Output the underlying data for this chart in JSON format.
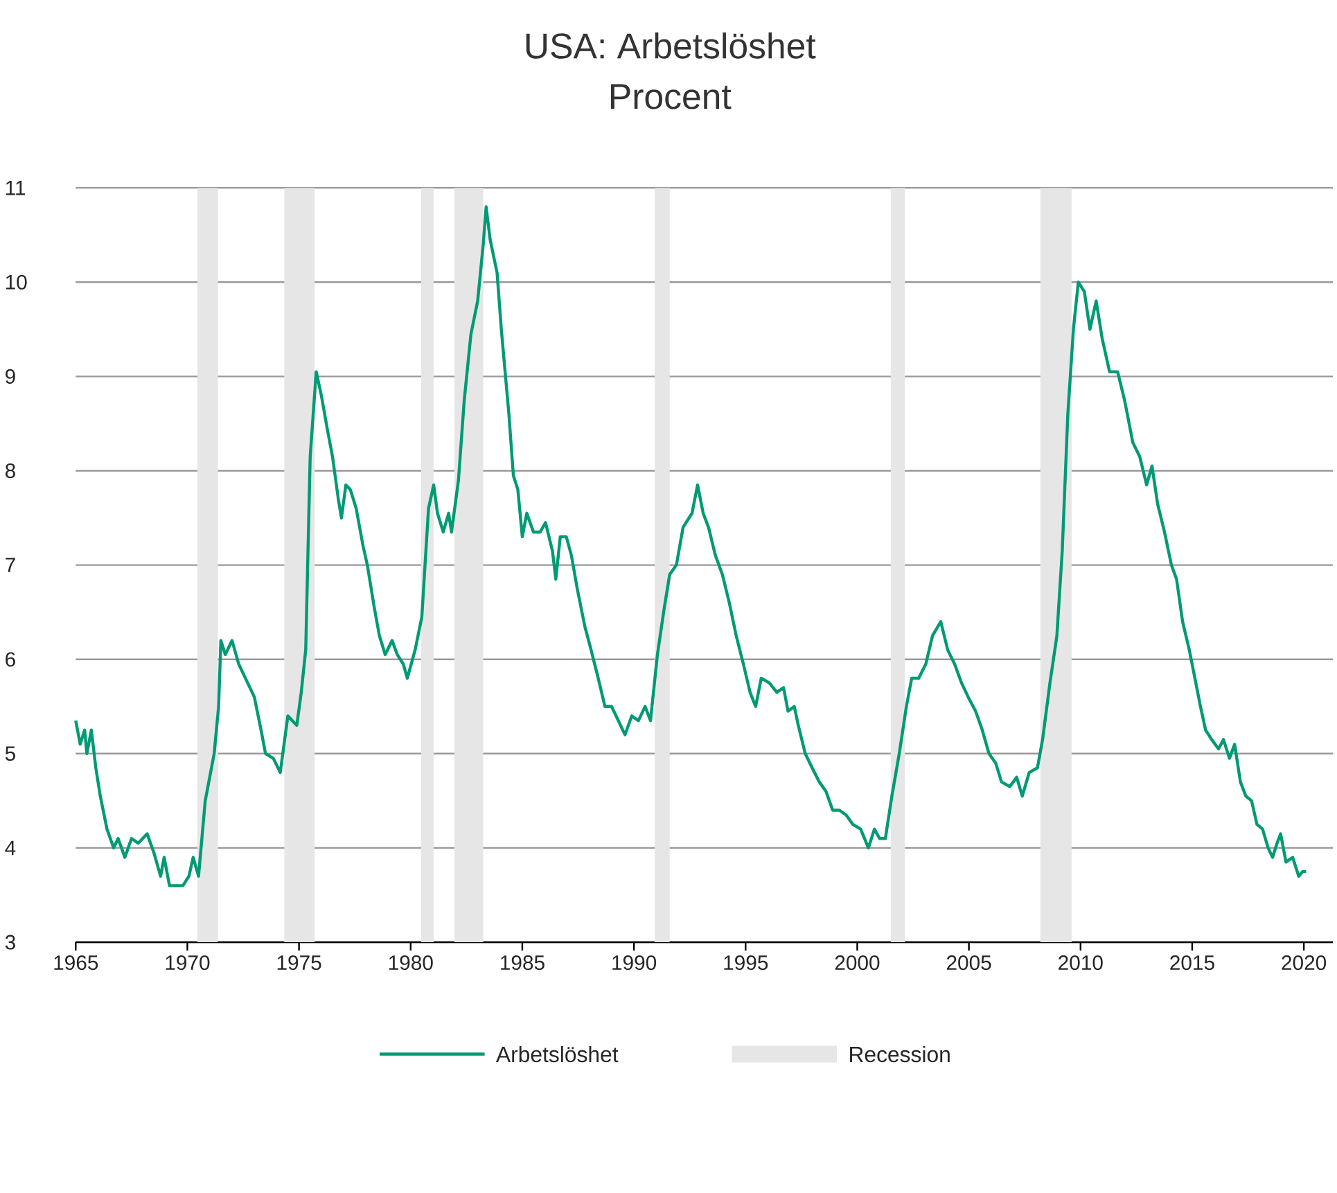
{
  "chart_data": {
    "type": "line",
    "title": "USA: Arbetslöshet",
    "subtitle": "Procent",
    "xlim": [
      1965,
      2021.3
    ],
    "ylim": [
      3,
      11
    ],
    "xticks": [
      1965,
      1970,
      1975,
      1980,
      1985,
      1990,
      1995,
      2000,
      2005,
      2010,
      2015,
      2020
    ],
    "yticks": [
      3,
      4,
      5,
      6,
      7,
      8,
      9,
      10,
      11
    ],
    "grid": "y",
    "legend": "bottom",
    "line_style": "solid",
    "bands": [
      {
        "axis": "x",
        "from": 1970.45,
        "to": 1971.37,
        "label": "Recession",
        "color": "#e6e6e6"
      },
      {
        "axis": "x",
        "from": 1974.34,
        "to": 1975.7,
        "color": "#e6e6e6"
      },
      {
        "axis": "x",
        "from": 1980.47,
        "to": 1981.03,
        "color": "#e6e6e6"
      },
      {
        "axis": "x",
        "from": 1981.96,
        "to": 1983.25,
        "color": "#e6e6e6"
      },
      {
        "axis": "x",
        "from": 1990.93,
        "to": 1991.6,
        "color": "#e6e6e6"
      },
      {
        "axis": "x",
        "from": 2001.5,
        "to": 2002.13,
        "color": "#e6e6e6"
      },
      {
        "axis": "x",
        "from": 2008.2,
        "to": 2009.6,
        "color": "#e6e6e6"
      }
    ],
    "series": [
      {
        "name": "Arbetslöshet",
        "color": "#009a74",
        "x": [
          1965.0,
          1965.2,
          1965.4,
          1965.5,
          1965.7,
          1965.9,
          1966.1,
          1966.4,
          1966.7,
          1966.9,
          1967.2,
          1967.5,
          1967.8,
          1968.2,
          1968.5,
          1968.8,
          1968.96,
          1969.2,
          1969.8,
          1970.07,
          1970.26,
          1970.5,
          1970.8,
          1971.2,
          1971.4,
          1971.5,
          1971.7,
          1972.0,
          1972.3,
          1972.6,
          1973.0,
          1973.3,
          1973.5,
          1973.85,
          1974.16,
          1974.5,
          1974.9,
          1975.1,
          1975.3,
          1975.5,
          1975.77,
          1976.0,
          1976.26,
          1976.5,
          1976.76,
          1976.9,
          1977.1,
          1977.3,
          1977.56,
          1977.87,
          1978.06,
          1978.37,
          1978.6,
          1978.86,
          1979.17,
          1979.4,
          1979.67,
          1979.85,
          1980.2,
          1980.5,
          1980.8,
          1981.03,
          1981.2,
          1981.46,
          1981.7,
          1981.83,
          1982.14,
          1982.4,
          1982.7,
          1983.0,
          1983.25,
          1983.38,
          1983.56,
          1983.87,
          1984.06,
          1984.4,
          1984.6,
          1984.8,
          1985.0,
          1985.2,
          1985.5,
          1985.8,
          1986.04,
          1986.35,
          1986.5,
          1986.7,
          1986.97,
          1987.2,
          1987.46,
          1987.8,
          1988.08,
          1988.4,
          1988.7,
          1989.0,
          1989.3,
          1989.6,
          1989.9,
          1990.2,
          1990.5,
          1990.74,
          1991.05,
          1991.36,
          1991.6,
          1991.9,
          1992.2,
          1992.6,
          1992.85,
          1993.1,
          1993.34,
          1993.65,
          1993.96,
          1994.27,
          1994.58,
          1994.9,
          1995.2,
          1995.45,
          1995.7,
          1996.06,
          1996.4,
          1996.7,
          1996.9,
          1997.18,
          1997.36,
          1997.67,
          1997.98,
          1998.3,
          1998.6,
          1998.9,
          1999.2,
          1999.5,
          1999.8,
          2000.15,
          2000.5,
          2000.77,
          2001.0,
          2001.26,
          2001.55,
          2001.88,
          2002.2,
          2002.44,
          2002.75,
          2003.07,
          2003.37,
          2003.74,
          2004.05,
          2004.36,
          2004.67,
          2004.97,
          2005.3,
          2005.6,
          2005.9,
          2006.2,
          2006.46,
          2006.83,
          2007.14,
          2007.39,
          2007.7,
          2008.07,
          2008.3,
          2008.63,
          2008.94,
          2009.18,
          2009.43,
          2009.68,
          2009.9,
          2010.17,
          2010.42,
          2010.7,
          2010.97,
          2011.3,
          2011.66,
          2011.97,
          2012.34,
          2012.65,
          2012.96,
          2013.2,
          2013.45,
          2013.76,
          2014.07,
          2014.3,
          2014.57,
          2014.87,
          2015.12,
          2015.37,
          2015.6,
          2015.87,
          2016.18,
          2016.4,
          2016.67,
          2016.9,
          2017.16,
          2017.4,
          2017.66,
          2017.9,
          2018.15,
          2018.4,
          2018.6,
          2018.8,
          2018.96,
          2019.2,
          2019.5,
          2019.77,
          2019.95,
          2020.1
        ],
        "values": [
          5.35,
          5.1,
          5.25,
          5.0,
          5.25,
          4.85,
          4.55,
          4.2,
          4.0,
          4.1,
          3.9,
          4.1,
          4.05,
          4.15,
          3.95,
          3.7,
          3.9,
          3.6,
          3.6,
          3.7,
          3.9,
          3.7,
          4.5,
          5.0,
          5.5,
          6.2,
          6.05,
          6.2,
          5.95,
          5.8,
          5.6,
          5.25,
          5.0,
          4.95,
          4.8,
          5.4,
          5.3,
          5.65,
          6.1,
          8.15,
          9.05,
          8.8,
          8.45,
          8.15,
          7.7,
          7.5,
          7.85,
          7.8,
          7.6,
          7.2,
          7.0,
          6.55,
          6.25,
          6.05,
          6.2,
          6.05,
          5.95,
          5.8,
          6.1,
          6.45,
          7.6,
          7.85,
          7.55,
          7.35,
          7.55,
          7.35,
          7.9,
          8.75,
          9.45,
          9.8,
          10.4,
          10.8,
          10.45,
          10.1,
          9.5,
          8.6,
          7.95,
          7.8,
          7.3,
          7.55,
          7.35,
          7.35,
          7.45,
          7.15,
          6.85,
          7.3,
          7.3,
          7.1,
          6.75,
          6.35,
          6.1,
          5.8,
          5.5,
          5.5,
          5.35,
          5.2,
          5.4,
          5.35,
          5.5,
          5.35,
          6.05,
          6.55,
          6.9,
          7.0,
          7.4,
          7.55,
          7.85,
          7.55,
          7.4,
          7.1,
          6.9,
          6.6,
          6.25,
          5.95,
          5.65,
          5.5,
          5.8,
          5.75,
          5.65,
          5.7,
          5.45,
          5.5,
          5.3,
          5.0,
          4.85,
          4.7,
          4.6,
          4.4,
          4.4,
          4.35,
          4.25,
          4.2,
          4.0,
          4.2,
          4.1,
          4.1,
          4.55,
          5.0,
          5.5,
          5.8,
          5.8,
          5.95,
          6.25,
          6.4,
          6.1,
          5.95,
          5.75,
          5.6,
          5.45,
          5.25,
          5.0,
          4.9,
          4.7,
          4.65,
          4.75,
          4.55,
          4.8,
          4.85,
          5.15,
          5.75,
          6.25,
          7.15,
          8.6,
          9.5,
          10.0,
          9.9,
          9.5,
          9.8,
          9.4,
          9.05,
          9.05,
          8.75,
          8.3,
          8.15,
          7.85,
          8.05,
          7.65,
          7.35,
          7.0,
          6.85,
          6.4,
          6.1,
          5.8,
          5.5,
          5.25,
          5.15,
          5.05,
          5.15,
          4.95,
          5.1,
          4.7,
          4.55,
          4.5,
          4.25,
          4.2,
          4.0,
          3.9,
          4.05,
          4.15,
          3.85,
          3.9,
          3.7,
          3.75,
          3.75
        ]
      }
    ]
  }
}
